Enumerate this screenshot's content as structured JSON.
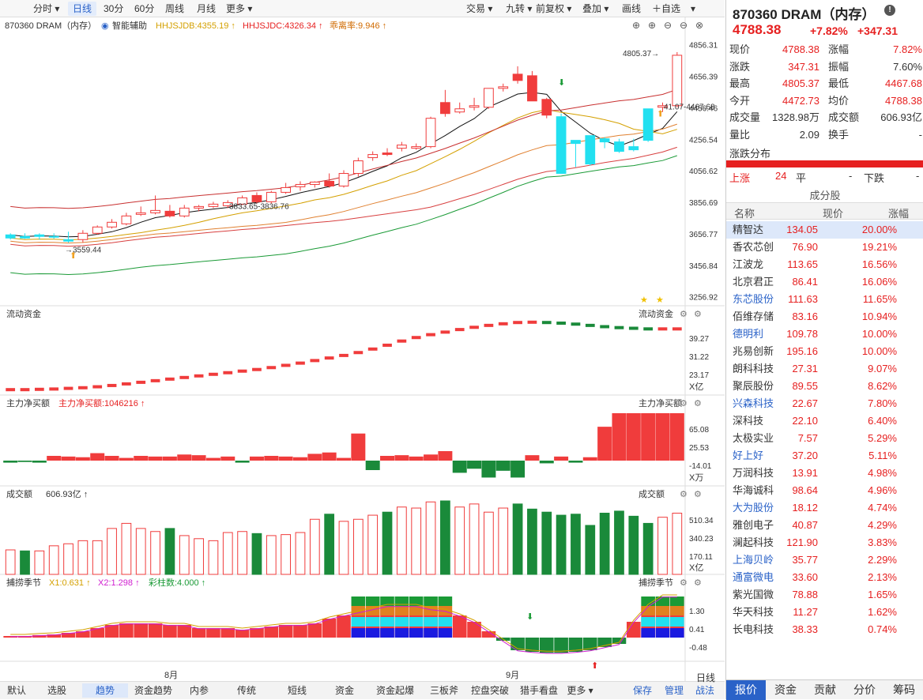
{
  "toolbar": {
    "tabs": [
      "分时",
      "日线",
      "30分",
      "60分",
      "周线",
      "月线",
      "更多"
    ],
    "active": 1,
    "right": [
      "交易",
      "九转",
      "前复权",
      "叠加",
      "画线",
      "自选"
    ]
  },
  "chart_header": {
    "symbol": "870360 DRAM（内存）",
    "aux": "智能辅助",
    "ind1": "HHJSJDB:4355.19",
    "ind2": "HHJSJDC:4326.34",
    "ind3": "乖离率:9.946"
  },
  "chart_data": {
    "type": "candlestick",
    "y_ticks": [
      "4856.31",
      "4656.39",
      "4456.46",
      "4256.54",
      "4056.62",
      "3856.69",
      "3656.77",
      "3456.84",
      "3256.92"
    ],
    "y_tick_values": [
      4856.31,
      4656.39,
      4456.46,
      4256.54,
      4056.62,
      3856.69,
      3656.77,
      3456.84,
      3256.92
    ],
    "ylim": [
      3200,
      4880
    ],
    "x_labels": [
      "8月",
      "9月"
    ],
    "annotations": [
      "4805.37",
      "41.07-4467.68",
      "3833.65-3836.76",
      "3559.44"
    ],
    "candles": [
      [
        3630,
        3660,
        3620,
        3650
      ],
      [
        3640,
        3660,
        3625,
        3630
      ],
      [
        3640,
        3660,
        3620,
        3650
      ],
      [
        3635,
        3660,
        3625,
        3640
      ],
      [
        3610,
        3670,
        3600,
        3620
      ],
      [
        3620,
        3680,
        3600,
        3660
      ],
      [
        3660,
        3710,
        3650,
        3700
      ],
      [
        3700,
        3750,
        3690,
        3730
      ],
      [
        3720,
        3790,
        3710,
        3770
      ],
      [
        3780,
        3830,
        3770,
        3790
      ],
      [
        3790,
        3900,
        3780,
        3805
      ],
      [
        3800,
        3840,
        3760,
        3770
      ],
      [
        3770,
        3840,
        3760,
        3820
      ],
      [
        3820,
        3840,
        3800,
        3830
      ],
      [
        3830,
        3860,
        3820,
        3845
      ],
      [
        3835,
        3870,
        3820,
        3855
      ],
      [
        3845,
        3900,
        3840,
        3885
      ],
      [
        3900,
        3920,
        3850,
        3860
      ],
      [
        3860,
        3930,
        3850,
        3920
      ],
      [
        3920,
        3980,
        3910,
        3950
      ],
      [
        3955,
        3990,
        3930,
        3970
      ],
      [
        3970,
        3990,
        3950,
        3985
      ],
      [
        3990,
        4040,
        3950,
        3960
      ],
      [
        3960,
        4060,
        3950,
        4040
      ],
      [
        4040,
        4140,
        4020,
        4120
      ],
      [
        4140,
        4180,
        4120,
        4160
      ],
      [
        4170,
        4200,
        4150,
        4160
      ],
      [
        4200,
        4240,
        4180,
        4220
      ],
      [
        4200,
        4230,
        4190,
        4210
      ],
      [
        4210,
        4400,
        4200,
        4390
      ],
      [
        4490,
        4570,
        4400,
        4420
      ],
      [
        4430,
        4490,
        4420,
        4450
      ],
      [
        4460,
        4520,
        4440,
        4470
      ],
      [
        4460,
        4580,
        4450,
        4580
      ],
      [
        4580,
        4610,
        4560,
        4590
      ],
      [
        4670,
        4720,
        4610,
        4630
      ],
      [
        4660,
        4690,
        4500,
        4500
      ],
      [
        4510,
        4520,
        4390,
        4410
      ],
      [
        4400,
        4420,
        4040,
        4040
      ],
      [
        4230,
        4240,
        4080,
        4250
      ],
      [
        4100,
        4280,
        4090,
        4280
      ],
      [
        4240,
        4270,
        4200,
        4260
      ],
      [
        4180,
        4260,
        4170,
        4240
      ],
      [
        4190,
        4260,
        4180,
        4210
      ],
      [
        4250,
        4450,
        4240,
        4450
      ],
      [
        4460,
        4490,
        4430,
        4470
      ],
      [
        4470,
        4810,
        4460,
        4790
      ]
    ]
  },
  "panels": {
    "flow": {
      "label": "流动资金",
      "right": "流动资金",
      "ticks": [
        "39.27",
        "31.22",
        "23.17"
      ],
      "unit": "X亿",
      "values": [
        23.2,
        23.2,
        23.3,
        23.4,
        23.6,
        23.8,
        24.1,
        24.5,
        25.0,
        25.5,
        26.0,
        26.5,
        27.0,
        27.5,
        28.0,
        28.5,
        29.0,
        29.5,
        30.1,
        30.8,
        31.5,
        32.3,
        33.1,
        33.9,
        34.8,
        35.9,
        37.1,
        38.4,
        39.5,
        40.4,
        41.2,
        42.0,
        42.7,
        43.3,
        43.8,
        44.2,
        44.3,
        44.2,
        44.0,
        43.7,
        43.3,
        42.9,
        42.6,
        42.4,
        42.2,
        42.2,
        42.2
      ]
    },
    "netbuy": {
      "label": "主力净买额",
      "label2": "主力净买额:1046216",
      "right": "主力净买额",
      "ticks": [
        "65.08",
        "25.53",
        "-14.01"
      ],
      "unit": "X万",
      "values": [
        -6,
        -4,
        -6,
        14,
        12,
        10,
        22,
        14,
        8,
        14,
        12,
        12,
        18,
        16,
        8,
        12,
        -6,
        12,
        14,
        12,
        10,
        20,
        24,
        8,
        80,
        -28,
        14,
        16,
        12,
        18,
        28,
        -36,
        -24,
        -50,
        -30,
        -50,
        16,
        -8,
        12,
        -6,
        10,
        100,
        140,
        140,
        140,
        140,
        140
      ]
    },
    "vol": {
      "label": "成交额",
      "value": "606.93亿",
      "right": "成交额",
      "ticks": [
        "510.34",
        "340.23",
        "170.11"
      ],
      "unit": "X亿",
      "values": [
        240,
        230,
        230,
        280,
        300,
        330,
        330,
        450,
        500,
        450,
        420,
        450,
        380,
        350,
        330,
        410,
        420,
        400,
        380,
        390,
        410,
        540,
        590,
        520,
        540,
        580,
        610,
        660,
        650,
        710,
        720,
        660,
        690,
        610,
        650,
        690,
        640,
        610,
        580,
        590,
        480,
        600,
        620,
        570,
        500,
        560,
        600
      ]
    },
    "bp": {
      "label": "捕捞季节",
      "x1": "X1:0.631",
      "x2": "X2:1.298",
      "k": "彩柱数:4.000",
      "right": "捕捞季节",
      "ticks": [
        "1.30",
        "0.41",
        "-0.48"
      ]
    }
  },
  "bottom": {
    "left": [
      "默认",
      "选股",
      "趋势",
      "资金趋势",
      "内参",
      "传统",
      "短线",
      "资金",
      "资金起爆",
      "三板斧",
      "控盘突破",
      "猎手看盘",
      "更多"
    ],
    "active": 2,
    "right": [
      "保存",
      "管理",
      "战法"
    ],
    "period": "日线"
  },
  "quote": {
    "title": "870360 DRAM（内存）",
    "price": "4788.38",
    "pct": "+7.82%",
    "chg": "+347.31",
    "rows": [
      [
        "现价",
        "4788.38",
        "red",
        "涨幅",
        "7.82%",
        "red"
      ],
      [
        "涨跌",
        "347.31",
        "red",
        "振幅",
        "7.60%",
        "blk"
      ],
      [
        "最高",
        "4805.37",
        "red",
        "最低",
        "4467.68",
        "red"
      ],
      [
        "今开",
        "4472.73",
        "red",
        "均价",
        "4788.38",
        "red"
      ],
      [
        "成交量",
        "1328.98万",
        "blk",
        "成交额",
        "606.93亿",
        "blk"
      ],
      [
        "量比",
        "2.09",
        "blk",
        "换手",
        "-",
        "blk"
      ]
    ],
    "dist_label": "涨跌分布",
    "up_label": "上涨",
    "up_val": "24",
    "flat_label": "平",
    "flat_val": "-",
    "down_label": "下跌",
    "down_val": "-",
    "comp_title": "成分股",
    "cols": [
      "名称",
      "现价",
      "涨幅"
    ],
    "stocks": [
      [
        "精智达",
        "134.05",
        "20.00%",
        "k"
      ],
      [
        "香农芯创",
        "76.90",
        "19.21%",
        "k"
      ],
      [
        "江波龙",
        "113.65",
        "16.56%",
        "k"
      ],
      [
        "北京君正",
        "86.41",
        "16.06%",
        "k"
      ],
      [
        "东芯股份",
        "111.63",
        "11.65%",
        "b"
      ],
      [
        "佰维存储",
        "83.16",
        "10.94%",
        "k"
      ],
      [
        "德明利",
        "109.78",
        "10.00%",
        "b"
      ],
      [
        "兆易创新",
        "195.16",
        "10.00%",
        "k"
      ],
      [
        "朗科科技",
        "27.31",
        "9.07%",
        "k"
      ],
      [
        "聚辰股份",
        "89.55",
        "8.62%",
        "k"
      ],
      [
        "兴森科技",
        "22.67",
        "7.80%",
        "b"
      ],
      [
        "深科技",
        "22.10",
        "6.40%",
        "k"
      ],
      [
        "太极实业",
        "7.57",
        "5.29%",
        "k"
      ],
      [
        "好上好",
        "37.20",
        "5.11%",
        "b"
      ],
      [
        "万润科技",
        "13.91",
        "4.98%",
        "k"
      ],
      [
        "华海诚科",
        "98.64",
        "4.96%",
        "k"
      ],
      [
        "大为股份",
        "18.12",
        "4.74%",
        "b"
      ],
      [
        "雅创电子",
        "40.87",
        "4.29%",
        "k"
      ],
      [
        "澜起科技",
        "121.90",
        "3.83%",
        "k"
      ],
      [
        "上海贝岭",
        "35.77",
        "2.29%",
        "b"
      ],
      [
        "通富微电",
        "33.60",
        "2.13%",
        "b"
      ],
      [
        "紫光国微",
        "78.88",
        "1.65%",
        "k"
      ],
      [
        "华天科技",
        "11.27",
        "1.62%",
        "k"
      ],
      [
        "长电科技",
        "38.33",
        "0.74%",
        "k"
      ]
    ],
    "tabs": [
      "报价",
      "资金",
      "贡献",
      "分价",
      "筹码"
    ]
  }
}
